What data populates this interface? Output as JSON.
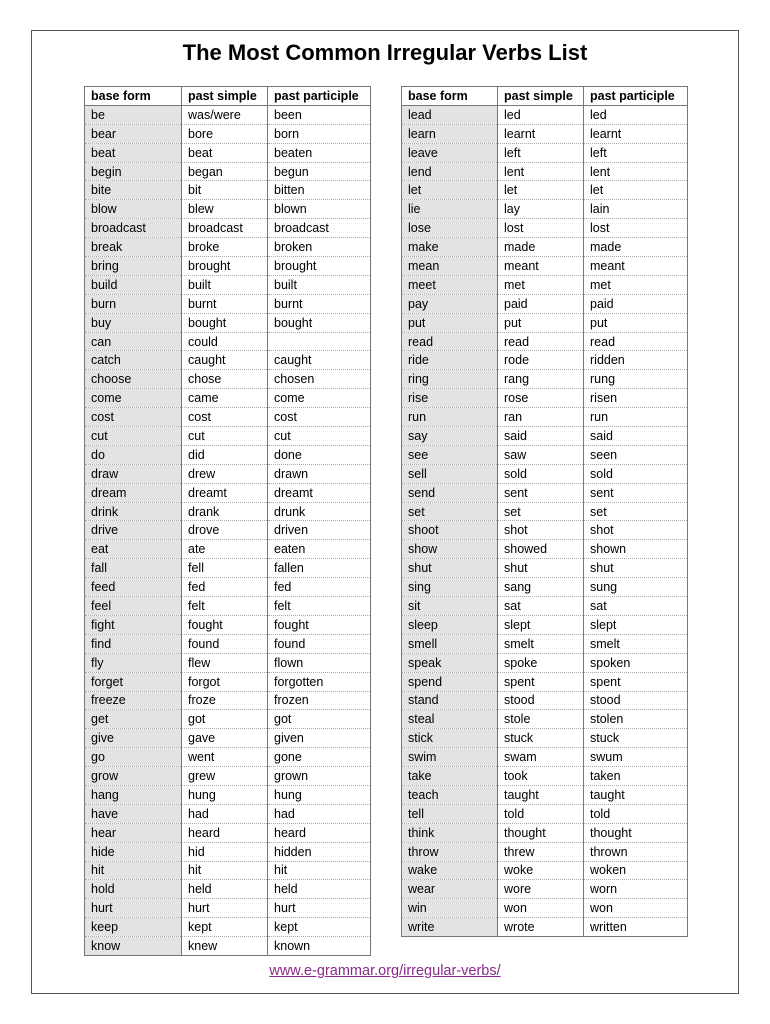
{
  "title": "The Most Common Irregular Verbs List",
  "tables": [
    {
      "header": [
        "base form",
        "past simple",
        "past participle"
      ],
      "rows": [
        [
          "be",
          "was/were",
          "been"
        ],
        [
          "bear",
          "bore",
          "born"
        ],
        [
          "beat",
          "beat",
          "beaten"
        ],
        [
          "begin",
          "began",
          "begun"
        ],
        [
          "bite",
          "bit",
          "bitten"
        ],
        [
          "blow",
          "blew",
          "blown"
        ],
        [
          "broadcast",
          "broadcast",
          "broadcast"
        ],
        [
          "break",
          "broke",
          "broken"
        ],
        [
          "bring",
          "brought",
          "brought"
        ],
        [
          "build",
          "built",
          "built"
        ],
        [
          "burn",
          "burnt",
          "burnt"
        ],
        [
          "buy",
          "bought",
          "bought"
        ],
        [
          "can",
          "could",
          null
        ],
        [
          "catch",
          "caught",
          "caught"
        ],
        [
          "choose",
          "chose",
          "chosen"
        ],
        [
          "come",
          "came",
          "come"
        ],
        [
          "cost",
          "cost",
          "cost"
        ],
        [
          "cut",
          "cut",
          "cut"
        ],
        [
          "do",
          "did",
          "done"
        ],
        [
          "draw",
          "drew",
          "drawn"
        ],
        [
          "dream",
          "dreamt",
          "dreamt"
        ],
        [
          "drink",
          "drank",
          "drunk"
        ],
        [
          "drive",
          "drove",
          "driven"
        ],
        [
          "eat",
          "ate",
          "eaten"
        ],
        [
          "fall",
          "fell",
          "fallen"
        ],
        [
          "feed",
          "fed",
          "fed"
        ],
        [
          "feel",
          "felt",
          "felt"
        ],
        [
          "fight",
          "fought",
          "fought"
        ],
        [
          "find",
          "found",
          "found"
        ],
        [
          "fly",
          "flew",
          "flown"
        ],
        [
          "forget",
          "forgot",
          "forgotten"
        ],
        [
          "freeze",
          "froze",
          "frozen"
        ],
        [
          "get",
          "got",
          "got"
        ],
        [
          "give",
          "gave",
          "given"
        ],
        [
          "go",
          "went",
          "gone"
        ],
        [
          "grow",
          "grew",
          "grown"
        ],
        [
          "hang",
          "hung",
          "hung"
        ],
        [
          "have",
          "had",
          "had"
        ],
        [
          "hear",
          "heard",
          "heard"
        ],
        [
          "hide",
          "hid",
          "hidden"
        ],
        [
          "hit",
          "hit",
          "hit"
        ],
        [
          "hold",
          "held",
          "held"
        ],
        [
          "hurt",
          "hurt",
          "hurt"
        ],
        [
          "keep",
          "kept",
          "kept"
        ],
        [
          "know",
          "knew",
          "known"
        ]
      ]
    },
    {
      "header": [
        "base form",
        "past simple",
        "past participle"
      ],
      "rows": [
        [
          "lead",
          "led",
          "led"
        ],
        [
          "learn",
          "learnt",
          "learnt"
        ],
        [
          "leave",
          "left",
          "left"
        ],
        [
          "lend",
          "lent",
          "lent"
        ],
        [
          "let",
          "let",
          "let"
        ],
        [
          "lie",
          "lay",
          "lain"
        ],
        [
          "lose",
          "lost",
          "lost"
        ],
        [
          "make",
          "made",
          "made"
        ],
        [
          "mean",
          "meant",
          "meant"
        ],
        [
          "meet",
          "met",
          "met"
        ],
        [
          "pay",
          "paid",
          "paid"
        ],
        [
          "put",
          "put",
          "put"
        ],
        [
          "read",
          "read",
          "read"
        ],
        [
          "ride",
          "rode",
          "ridden"
        ],
        [
          "ring",
          "rang",
          "rung"
        ],
        [
          "rise",
          "rose",
          "risen"
        ],
        [
          "run",
          "ran",
          "run"
        ],
        [
          "say",
          "said",
          "said"
        ],
        [
          "see",
          "saw",
          "seen"
        ],
        [
          "sell",
          "sold",
          "sold"
        ],
        [
          "send",
          "sent",
          "sent"
        ],
        [
          "set",
          "set",
          "set"
        ],
        [
          "shoot",
          "shot",
          "shot"
        ],
        [
          "show",
          "showed",
          "shown"
        ],
        [
          "shut",
          "shut",
          "shut"
        ],
        [
          "sing",
          "sang",
          "sung"
        ],
        [
          "sit",
          "sat",
          "sat"
        ],
        [
          "sleep",
          "slept",
          "slept"
        ],
        [
          "smell",
          "smelt",
          "smelt"
        ],
        [
          "speak",
          "spoke",
          "spoken"
        ],
        [
          "spend",
          "spent",
          "spent"
        ],
        [
          "stand",
          "stood",
          "stood"
        ],
        [
          "steal",
          "stole",
          "stolen"
        ],
        [
          "stick",
          "stuck",
          "stuck"
        ],
        [
          "swim",
          "swam",
          "swum"
        ],
        [
          "take",
          "took",
          "taken"
        ],
        [
          "teach",
          "taught",
          "taught"
        ],
        [
          "tell",
          "told",
          "told"
        ],
        [
          "think",
          "thought",
          "thought"
        ],
        [
          "throw",
          "threw",
          "thrown"
        ],
        [
          "wake",
          "woke",
          "woken"
        ],
        [
          "wear",
          "wore",
          "worn"
        ],
        [
          "win",
          "won",
          "won"
        ],
        [
          "write",
          "wrote",
          "written"
        ]
      ]
    }
  ],
  "footer_link": "www.e-grammar.org/irregular-verbs/"
}
